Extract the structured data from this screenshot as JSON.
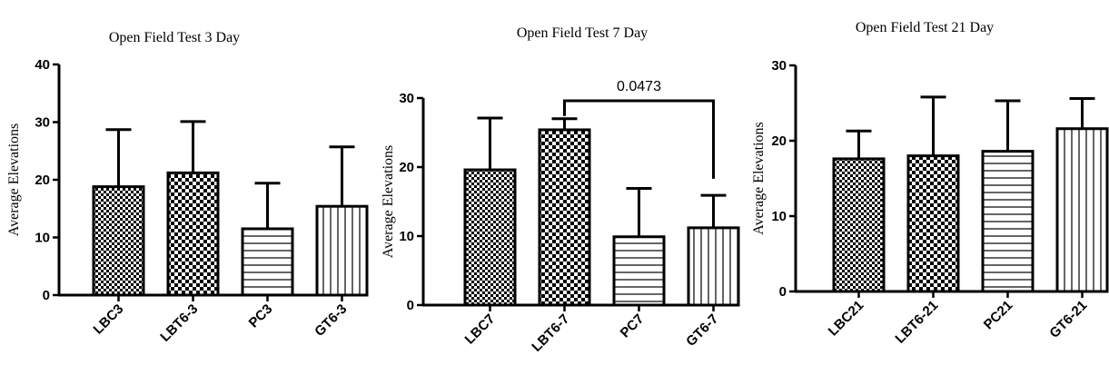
{
  "chart_data": [
    {
      "type": "bar",
      "title": "Open Field Test 3 Day",
      "ylabel": "Average Elevations",
      "xlabel": "",
      "ylim": [
        0,
        40
      ],
      "yticks": [
        0,
        10,
        20,
        30,
        40
      ],
      "categories": [
        "LBC3",
        "LBT6-3",
        "PC3",
        "GT6-3"
      ],
      "values": [
        18.8,
        21.2,
        11.5,
        15.4
      ],
      "errors": [
        9.9,
        8.9,
        7.9,
        10.3
      ],
      "patterns": [
        "checker-small",
        "checker-large",
        "hlines",
        "vlines"
      ],
      "annotations": []
    },
    {
      "type": "bar",
      "title": "Open Field Test 7 Day",
      "ylabel": "Average Elevations",
      "xlabel": "",
      "ylim": [
        0,
        30
      ],
      "yticks": [
        0,
        10,
        20,
        30
      ],
      "categories": [
        "LBC7",
        "LBT6-7",
        "PC7",
        "GT6-7"
      ],
      "values": [
        19.6,
        25.4,
        9.9,
        11.2
      ],
      "errors": [
        7.5,
        1.6,
        7.0,
        4.7
      ],
      "patterns": [
        "checker-small",
        "checker-large",
        "hlines",
        "vlines"
      ],
      "annotations": [
        {
          "text": "0.0473",
          "from": "LBT6-7",
          "to": "GT6-7"
        }
      ]
    },
    {
      "type": "bar",
      "title": "Open Field Test 21 Day",
      "ylabel": "Average Elevations",
      "xlabel": "",
      "ylim": [
        0,
        30
      ],
      "yticks": [
        0,
        10,
        20,
        30
      ],
      "categories": [
        "LBC21",
        "LBT6-21",
        "PC21",
        "GT6-21"
      ],
      "values": [
        17.6,
        18.0,
        18.6,
        21.6
      ],
      "errors": [
        3.7,
        7.8,
        6.7,
        4.0
      ],
      "patterns": [
        "checker-small",
        "checker-large",
        "hlines",
        "vlines"
      ],
      "annotations": []
    }
  ]
}
